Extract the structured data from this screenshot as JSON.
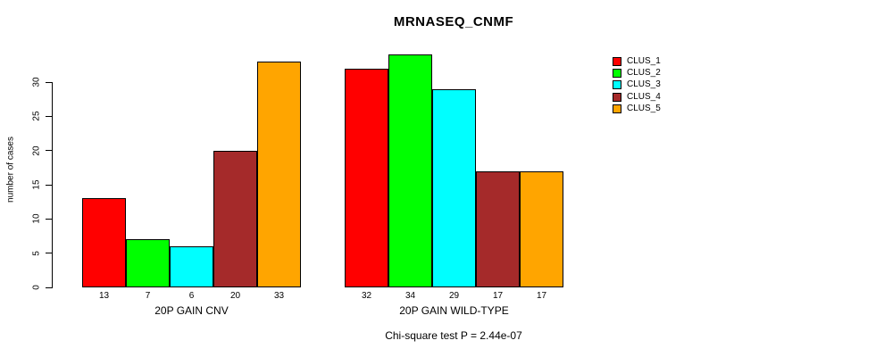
{
  "chart_data": {
    "type": "bar",
    "title": "MRNASEQ_CNMF",
    "xlabel": "",
    "ylabel": "number of cases",
    "categories": [
      "20P GAIN CNV",
      "20P GAIN WILD-TYPE"
    ],
    "series": [
      {
        "name": "CLUS_1",
        "color": "#ff0000",
        "values": [
          13,
          32
        ]
      },
      {
        "name": "CLUS_2",
        "color": "#00ff00",
        "values": [
          7,
          34
        ]
      },
      {
        "name": "CLUS_3",
        "color": "#00ffff",
        "values": [
          6,
          29
        ]
      },
      {
        "name": "CLUS_4",
        "color": "#a52a2a",
        "values": [
          20,
          17
        ]
      },
      {
        "name": "CLUS_5",
        "color": "#ffa500",
        "values": [
          33,
          17
        ]
      }
    ],
    "yticks": [
      0,
      5,
      10,
      15,
      20,
      25,
      30
    ],
    "ylim": [
      0,
      34
    ],
    "bar_value_labels": [
      [
        13,
        7,
        6,
        20,
        33
      ],
      [
        32,
        34,
        29,
        17,
        17
      ]
    ],
    "grid": false,
    "legend_position": "right",
    "annotation": "Chi-square test P = 2.44e-07"
  }
}
